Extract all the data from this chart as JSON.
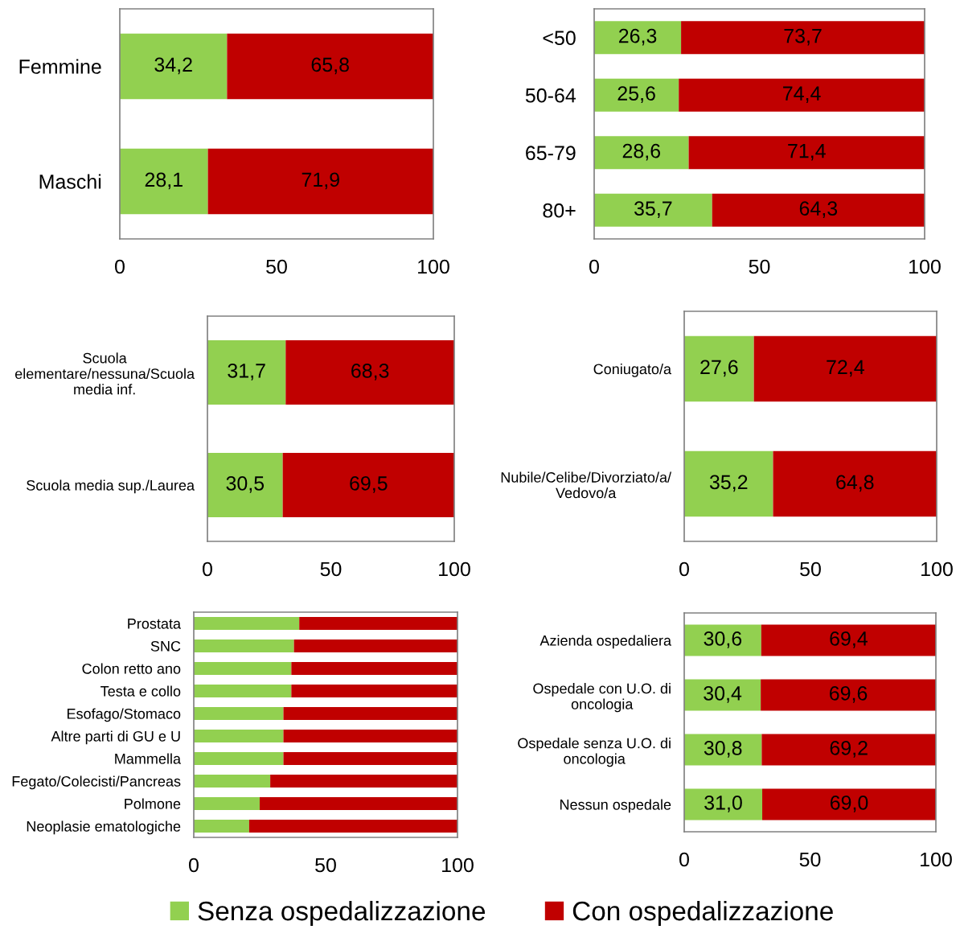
{
  "chart_data": [
    {
      "type": "bar",
      "orientation": "horizontal",
      "stacked": true,
      "categories": [
        "Femmine",
        "Maschi"
      ],
      "series": [
        {
          "color": "#92d050",
          "values": [
            34.2,
            28.1
          ],
          "value_labels": [
            "34,2",
            "28,1"
          ]
        },
        {
          "color": "#c00000",
          "values": [
            65.8,
            71.9
          ],
          "value_labels": [
            "65,8",
            "71,9"
          ]
        }
      ],
      "xlim": [
        0,
        100
      ],
      "xticks": [
        0,
        50,
        100
      ],
      "grid": false
    },
    {
      "type": "bar",
      "orientation": "horizontal",
      "stacked": true,
      "categories": [
        "<50",
        "50-64",
        "65-79",
        "80+"
      ],
      "series": [
        {
          "color": "#92d050",
          "values": [
            26.3,
            25.6,
            28.6,
            35.7
          ],
          "value_labels": [
            "26,3",
            "25,6",
            "28,6",
            "35,7"
          ]
        },
        {
          "color": "#c00000",
          "values": [
            73.7,
            74.4,
            71.4,
            64.3
          ],
          "value_labels": [
            "73,7",
            "74,4",
            "71,4",
            "64,3"
          ]
        }
      ],
      "xlim": [
        0,
        100
      ],
      "xticks": [
        0,
        50,
        100
      ],
      "grid": false
    },
    {
      "type": "bar",
      "orientation": "horizontal",
      "stacked": true,
      "categories": [
        "Scuola\nelementare/nessuna/Scuola\nmedia inf.",
        "Scuola media sup./Laurea"
      ],
      "series": [
        {
          "color": "#92d050",
          "values": [
            31.7,
            30.5
          ],
          "value_labels": [
            "31,7",
            "30,5"
          ]
        },
        {
          "color": "#c00000",
          "values": [
            68.3,
            69.5
          ],
          "value_labels": [
            "68,3",
            "69,5"
          ]
        }
      ],
      "xlim": [
        0,
        100
      ],
      "xticks": [
        0,
        50,
        100
      ],
      "grid": false
    },
    {
      "type": "bar",
      "orientation": "horizontal",
      "stacked": true,
      "categories": [
        "Coniugato/a",
        "Nubile/Celibe/Divorziato/a/\nVedovo/a"
      ],
      "series": [
        {
          "color": "#92d050",
          "values": [
            27.6,
            35.2
          ],
          "value_labels": [
            "27,6",
            "35,2"
          ]
        },
        {
          "color": "#c00000",
          "values": [
            72.4,
            64.8
          ],
          "value_labels": [
            "72,4",
            "64,8"
          ]
        }
      ],
      "xlim": [
        0,
        100
      ],
      "xticks": [
        0,
        50,
        100
      ],
      "grid": false
    },
    {
      "type": "bar",
      "orientation": "horizontal",
      "stacked": true,
      "categories": [
        "Prostata",
        "SNC",
        "Colon retto ano",
        "Testa e collo",
        "Esofago/Stomaco",
        "Altre parti di GU e U",
        "Mammella",
        "Fegato/Colecisti/Pancreas",
        "Polmone",
        "Neoplasie ematologiche"
      ],
      "series": [
        {
          "color": "#92d050",
          "values": [
            40,
            38,
            37,
            37,
            34,
            34,
            34,
            29,
            25,
            21
          ]
        },
        {
          "color": "#c00000",
          "values": [
            60,
            62,
            63,
            63,
            66,
            66,
            66,
            71,
            75,
            79
          ]
        }
      ],
      "xlim": [
        0,
        100
      ],
      "xticks": [
        0,
        50,
        100
      ],
      "grid": false
    },
    {
      "type": "bar",
      "orientation": "horizontal",
      "stacked": true,
      "categories": [
        "Azienda ospedaliera",
        "Ospedale con U.O. di\noncologia",
        "Ospedale senza U.O. di\noncologia",
        "Nessun ospedale"
      ],
      "series": [
        {
          "name": "Senza ospedalizzazione",
          "color": "#92d050",
          "values": [
            30.6,
            30.4,
            30.8,
            31.0
          ],
          "value_labels": [
            "30,6",
            "30,4",
            "30,8",
            "31,0"
          ]
        },
        {
          "name": "Con ospedalizzazione",
          "color": "#c00000",
          "values": [
            69.4,
            69.6,
            69.2,
            69.0
          ],
          "value_labels": [
            "69,4",
            "69,6",
            "69,2",
            "69,0"
          ]
        }
      ],
      "xlim": [
        0,
        100
      ],
      "xticks": [
        0,
        50,
        100
      ],
      "grid": false,
      "legend": "bottom"
    }
  ]
}
